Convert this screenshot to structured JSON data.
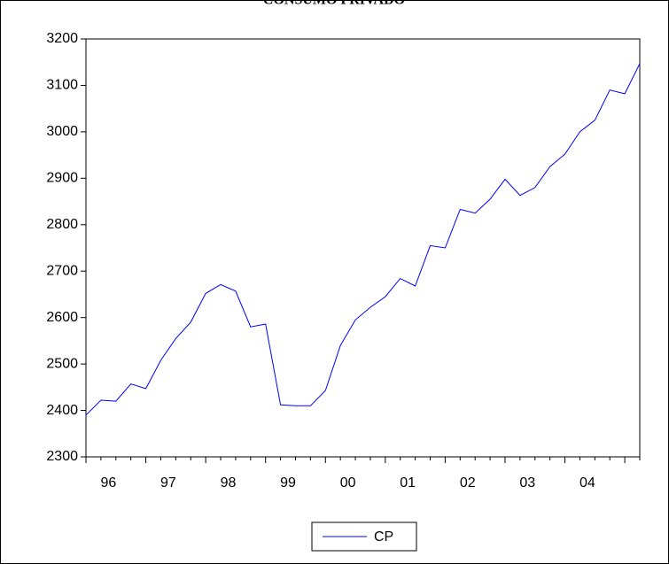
{
  "chart_data": {
    "type": "line",
    "title": "CONSUMO PRIVADO",
    "categories": [
      null,
      "96",
      null,
      null,
      null,
      "97",
      null,
      null,
      null,
      "98",
      null,
      null,
      null,
      "99",
      null,
      null,
      null,
      "00",
      null,
      null,
      null,
      "01",
      null,
      null,
      null,
      "02",
      null,
      null,
      null,
      "03",
      null,
      null,
      null,
      "04",
      null,
      null,
      null,
      null
    ],
    "series": [
      {
        "name": "CP",
        "color": "#0000ff",
        "values": [
          2390,
          2422,
          2420,
          2457,
          2447,
          2508,
          2555,
          2590,
          2652,
          2671,
          2657,
          2580,
          2586,
          2412,
          2410,
          2410,
          2443,
          2540,
          2595,
          2622,
          2645,
          2684,
          2668,
          2755,
          2750,
          2833,
          2825,
          2855,
          2898,
          2863,
          2880,
          2925,
          2952,
          3000,
          3025,
          3090,
          3082,
          3147
        ]
      }
    ],
    "ylim": [
      2300,
      3200
    ],
    "yticks": [
      2300,
      2400,
      2500,
      2600,
      2700,
      2800,
      2900,
      3000,
      3100,
      3200
    ],
    "legend": "bottom"
  }
}
